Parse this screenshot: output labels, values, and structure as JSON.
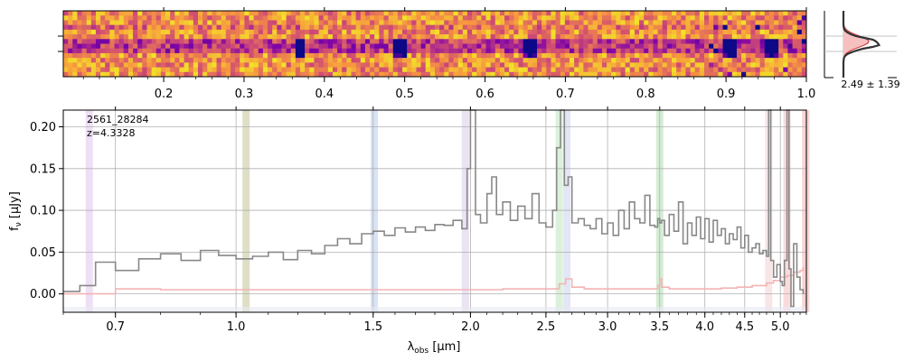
{
  "figure": {
    "object_id": "2561_28284",
    "redshift_label": "z=4.3328",
    "profile_label": "2.49 ± 1.39"
  },
  "chart_data": [
    {
      "type": "heatmap",
      "title": "",
      "description_rows": 14,
      "x_ticks": [
        "0.2",
        "0.3",
        "0.4",
        "0.5",
        "0.6",
        "0.7",
        "0.8",
        "0.9",
        "1.0"
      ],
      "x_tick_values": [
        0.2,
        0.3,
        0.4,
        0.5,
        0.6,
        0.7,
        0.8,
        0.9,
        1.0
      ],
      "xlim": [
        0.075,
        1.0
      ],
      "colormap": "plasma",
      "trace_row_fraction": 0.5,
      "bright_features_x": [
        0.37,
        0.495,
        0.655,
        0.905,
        0.955
      ]
    },
    {
      "type": "line",
      "title": "",
      "xlabel": "λobs [μm]",
      "ylabel": "fν [μJy]",
      "xlim": [
        0.6,
        5.4
      ],
      "ylim": [
        -0.022,
        0.22
      ],
      "x_ticks": [
        "0.7",
        "1.0",
        "1.5",
        "2.0",
        "2.5",
        "3.0",
        "3.5",
        "4.0",
        "4.5",
        "5.0"
      ],
      "x_tick_values": [
        0.7,
        1.0,
        1.5,
        2.0,
        2.5,
        3.0,
        3.5,
        4.0,
        4.5,
        5.0
      ],
      "y_ticks": [
        "0.00",
        "0.05",
        "0.10",
        "0.15",
        "0.20"
      ],
      "y_tick_values": [
        0.0,
        0.05,
        0.1,
        0.15,
        0.2
      ],
      "grid": true,
      "line_bands": [
        {
          "x": 0.648,
          "color": "#d9b8e8"
        },
        {
          "x": 1.03,
          "color": "#b5b880"
        },
        {
          "x": 1.505,
          "color": "#a8c4e8"
        },
        {
          "x": 1.97,
          "color": "#d0c0e0"
        },
        {
          "x": 2.6,
          "color": "#b0e0b0"
        },
        {
          "x": 2.66,
          "color": "#c0c8e8"
        },
        {
          "x": 3.5,
          "color": "#a0d8a0"
        },
        {
          "x": 4.83,
          "color": "#f0c8c8"
        },
        {
          "x": 5.1,
          "color": "#f4b0b0"
        },
        {
          "x": 5.39,
          "color": "#f0a0a0"
        }
      ],
      "series": [
        {
          "role": "flux",
          "color": "#888888",
          "x": [
            0.6,
            0.63,
            0.66,
            0.7,
            0.75,
            0.8,
            0.85,
            0.9,
            0.95,
            1.0,
            1.05,
            1.1,
            1.15,
            1.2,
            1.25,
            1.3,
            1.35,
            1.4,
            1.45,
            1.5,
            1.55,
            1.6,
            1.65,
            1.7,
            1.75,
            1.8,
            1.85,
            1.9,
            1.95,
            1.98,
            2.0,
            2.03,
            2.06,
            2.1,
            2.13,
            2.16,
            2.2,
            2.25,
            2.3,
            2.35,
            2.4,
            2.45,
            2.5,
            2.55,
            2.58,
            2.61,
            2.64,
            2.67,
            2.7,
            2.75,
            2.8,
            2.85,
            2.9,
            2.95,
            3.0,
            3.05,
            3.1,
            3.15,
            3.2,
            3.25,
            3.3,
            3.35,
            3.4,
            3.45,
            3.48,
            3.5,
            3.52,
            3.55,
            3.6,
            3.65,
            3.7,
            3.75,
            3.8,
            3.85,
            3.9,
            3.95,
            4.0,
            4.05,
            4.1,
            4.15,
            4.2,
            4.25,
            4.3,
            4.35,
            4.4,
            4.45,
            4.5,
            4.55,
            4.6,
            4.65,
            4.7,
            4.75,
            4.8,
            4.83,
            4.86,
            4.9,
            4.95,
            5.0,
            5.03,
            5.06,
            5.1,
            5.13,
            5.16,
            5.2,
            5.25,
            5.3,
            5.35
          ],
          "y": [
            0.003,
            0.01,
            0.038,
            0.028,
            0.042,
            0.048,
            0.04,
            0.052,
            0.046,
            0.042,
            0.045,
            0.05,
            0.041,
            0.052,
            0.048,
            0.058,
            0.066,
            0.06,
            0.072,
            0.075,
            0.07,
            0.079,
            0.074,
            0.08,
            0.076,
            0.083,
            0.082,
            0.088,
            0.078,
            0.15,
            0.22,
            0.095,
            0.085,
            0.12,
            0.14,
            0.095,
            0.11,
            0.088,
            0.105,
            0.09,
            0.12,
            0.085,
            0.08,
            0.1,
            0.175,
            0.22,
            0.13,
            0.14,
            0.085,
            0.09,
            0.082,
            0.078,
            0.09,
            0.072,
            0.085,
            0.07,
            0.1,
            0.078,
            0.11,
            0.09,
            0.085,
            0.118,
            0.082,
            0.08,
            0.09,
            0.085,
            0.088,
            0.07,
            0.095,
            0.075,
            0.11,
            0.06,
            0.085,
            0.07,
            0.092,
            0.066,
            0.09,
            0.062,
            0.088,
            0.07,
            0.078,
            0.06,
            0.072,
            0.065,
            0.08,
            0.055,
            0.07,
            0.05,
            0.055,
            0.06,
            0.048,
            0.052,
            0.045,
            0.22,
            0.04,
            0.02,
            0.035,
            0.015,
            0.01,
            0.04,
            0.22,
            0.03,
            -0.015,
            0.06,
            0.02,
            0.005,
            0.0
          ]
        },
        {
          "role": "error",
          "color": "#f4b4b4",
          "x": [
            0.6,
            0.7,
            0.8,
            0.9,
            1.0,
            1.2,
            1.4,
            1.6,
            1.8,
            2.0,
            2.2,
            2.4,
            2.55,
            2.6,
            2.65,
            2.7,
            2.8,
            3.0,
            3.2,
            3.4,
            3.48,
            3.5,
            3.52,
            3.6,
            3.8,
            4.0,
            4.2,
            4.4,
            4.6,
            4.8,
            4.9,
            5.0,
            5.1,
            5.2,
            5.3,
            5.35
          ],
          "y": [
            0.0,
            0.006,
            0.005,
            0.005,
            0.005,
            0.005,
            0.005,
            0.005,
            0.005,
            0.005,
            0.006,
            0.006,
            0.006,
            0.012,
            0.018,
            0.008,
            0.006,
            0.006,
            0.006,
            0.006,
            0.01,
            0.018,
            0.008,
            0.006,
            0.006,
            0.006,
            0.007,
            0.008,
            0.01,
            0.013,
            0.016,
            0.02,
            0.022,
            0.026,
            0.028,
            0.032
          ]
        }
      ]
    },
    {
      "type": "line",
      "title": "",
      "description": "spatial profile",
      "series": [
        {
          "role": "profile",
          "color": "#333333"
        },
        {
          "role": "model",
          "color": "#d04040"
        }
      ]
    }
  ]
}
